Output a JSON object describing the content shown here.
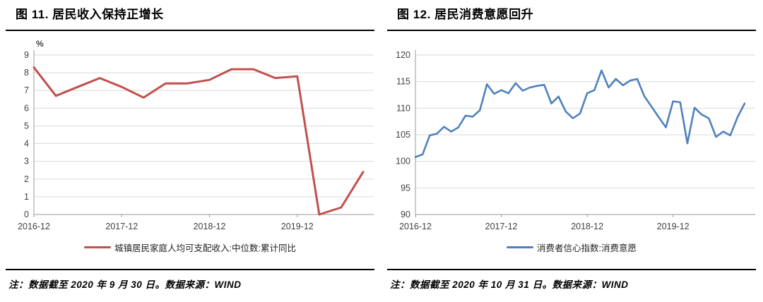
{
  "panels": [
    {
      "title": "图 11. 居民收入保持正增长",
      "note": "注：数据截至 2020 年 9 月 30 日。数据来源：WIND"
    },
    {
      "title": "图 12. 居民消费意愿回升",
      "note": "注：数据截至 2020 年 10 月 31 日。数据来源：WIND"
    }
  ],
  "chart_data": [
    {
      "type": "line",
      "title": "图 11. 居民收入保持正增长",
      "unit_label": "%",
      "ylim": [
        0,
        9
      ],
      "ytick_step": 1,
      "grid": true,
      "legend_position": "bottom",
      "xticks": [
        "2016-12",
        "2017-12",
        "2018-12",
        "2019-12"
      ],
      "x": [
        "2016-12",
        "2017-03",
        "2017-06",
        "2017-09",
        "2017-12",
        "2018-03",
        "2018-06",
        "2018-09",
        "2018-12",
        "2019-03",
        "2019-06",
        "2019-09",
        "2019-12",
        "2020-03",
        "2020-06",
        "2020-09"
      ],
      "series": [
        {
          "name": "城镇居民家庭人均可支配收入:中位数:累计同比",
          "color": "#C0504D",
          "values": [
            8.3,
            6.7,
            7.2,
            7.7,
            7.2,
            6.6,
            7.4,
            7.4,
            7.6,
            8.2,
            8.2,
            7.7,
            7.8,
            0.0,
            0.4,
            2.4
          ]
        }
      ]
    },
    {
      "type": "line",
      "title": "图 12. 居民消费意愿回升",
      "unit_label": "",
      "ylim": [
        90,
        120
      ],
      "ytick_step": 5,
      "grid": true,
      "legend_position": "bottom",
      "xticks": [
        "2016-12",
        "2017-12",
        "2018-12",
        "2019-12"
      ],
      "x": [
        "2016-12",
        "2017-01",
        "2017-02",
        "2017-03",
        "2017-04",
        "2017-05",
        "2017-06",
        "2017-07",
        "2017-08",
        "2017-09",
        "2017-10",
        "2017-11",
        "2017-12",
        "2018-01",
        "2018-02",
        "2018-03",
        "2018-04",
        "2018-05",
        "2018-06",
        "2018-07",
        "2018-08",
        "2018-09",
        "2018-10",
        "2018-11",
        "2018-12",
        "2019-01",
        "2019-02",
        "2019-03",
        "2019-04",
        "2019-05",
        "2019-06",
        "2019-07",
        "2019-08",
        "2019-09",
        "2019-10",
        "2019-11",
        "2019-12",
        "2020-01",
        "2020-02",
        "2020-03",
        "2020-04",
        "2020-05",
        "2020-06",
        "2020-07",
        "2020-08",
        "2020-09",
        "2020-10"
      ],
      "series": [
        {
          "name": "消费者信心指数:消费意愿",
          "color": "#4F81BD",
          "values": [
            100.8,
            101.3,
            104.9,
            105.2,
            106.5,
            105.6,
            106.4,
            108.6,
            108.4,
            109.6,
            114.5,
            112.7,
            113.4,
            112.8,
            114.7,
            113.3,
            113.9,
            114.2,
            114.4,
            110.9,
            112.2,
            109.4,
            108.1,
            109.0,
            112.8,
            113.4,
            117.1,
            113.9,
            115.5,
            114.3,
            115.2,
            115.5,
            112.2,
            110.3,
            108.3,
            106.4,
            111.3,
            111.1,
            103.4,
            110.1,
            108.8,
            108.1,
            104.6,
            105.6,
            104.9,
            108.3,
            110.9
          ]
        }
      ]
    }
  ]
}
